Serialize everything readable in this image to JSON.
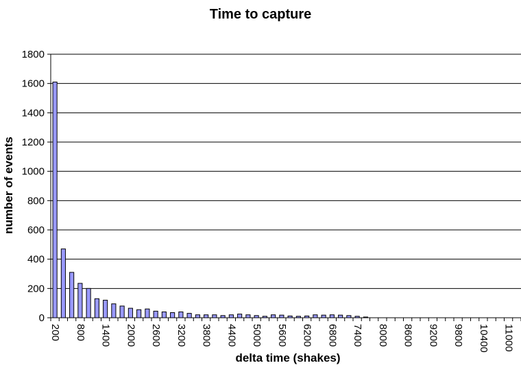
{
  "chart_data": {
    "type": "bar",
    "title": "Time to capture",
    "xlabel": "delta time (shakes)",
    "ylabel": "number of events",
    "ylim": [
      0,
      1800
    ],
    "yticks": [
      0,
      200,
      400,
      600,
      800,
      1000,
      1200,
      1400,
      1600,
      1800
    ],
    "grid": true,
    "bar_color": "#9999ff",
    "x": [
      200,
      400,
      600,
      800,
      1000,
      1200,
      1400,
      1600,
      1800,
      2000,
      2200,
      2400,
      2600,
      2800,
      3000,
      3200,
      3400,
      3600,
      3800,
      4000,
      4200,
      4400,
      4600,
      4800,
      5000,
      5200,
      5400,
      5600,
      5800,
      6000,
      6200,
      6400,
      6600,
      6800,
      7000,
      7200,
      7400,
      7600,
      7800,
      8000,
      8200,
      8400,
      8600,
      8800,
      9000,
      9200,
      9400,
      9600,
      9800,
      10000,
      10200,
      10400,
      10600,
      10800,
      11000,
      11200
    ],
    "values": [
      1610,
      470,
      310,
      235,
      200,
      130,
      120,
      95,
      80,
      65,
      55,
      60,
      45,
      40,
      35,
      40,
      30,
      20,
      20,
      20,
      15,
      20,
      25,
      20,
      15,
      10,
      20,
      18,
      12,
      10,
      12,
      20,
      18,
      20,
      18,
      15,
      10,
      5,
      0,
      0,
      0,
      0,
      0,
      0,
      0,
      0,
      0,
      0,
      0,
      0,
      0,
      0,
      0,
      0,
      0,
      0
    ],
    "xtick_labels": [
      "200",
      "800",
      "1400",
      "2000",
      "2600",
      "3200",
      "3800",
      "4400",
      "5000",
      "5600",
      "6200",
      "6800",
      "7400",
      "8000",
      "8600",
      "9200",
      "9800",
      "10400",
      "11000"
    ]
  }
}
